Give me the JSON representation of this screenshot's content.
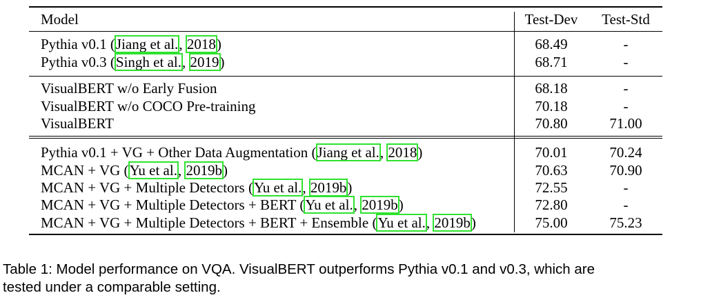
{
  "table": {
    "headers": {
      "model": "Model",
      "dev": "Test-Dev",
      "std": "Test-Std"
    },
    "rows": [
      {
        "model": "Pythia v0.1 (",
        "cite_author": "Jiang et al.",
        "sep": ", ",
        "cite_year": "2018",
        "close": ")",
        "dev": "68.49",
        "std": "-"
      },
      {
        "model": "Pythia v0.3 (",
        "cite_author": "Singh et al.",
        "sep": ", ",
        "cite_year": "2019",
        "close": ")",
        "dev": "68.71",
        "std": "-"
      },
      {
        "model": "VisualBERT w/o Early Fusion",
        "dev": "68.18",
        "std": "-"
      },
      {
        "model": "VisualBERT w/o COCO Pre-training",
        "dev": "70.18",
        "std": "-"
      },
      {
        "model": "VisualBERT",
        "dev": "70.80",
        "std": "71.00"
      },
      {
        "model": "Pythia v0.1 + VG + Other Data Augmentation (",
        "cite_author": "Jiang et al.",
        "sep": ", ",
        "cite_year": "2018",
        "close": ")",
        "dev": "70.01",
        "std": "70.24"
      },
      {
        "model": "MCAN + VG  (",
        "cite_author": "Yu et al.",
        "sep": ", ",
        "cite_year": "2019b",
        "close": ")",
        "dev": "70.63",
        "std": "70.90"
      },
      {
        "model": "MCAN + VG + Multiple Detectors (",
        "cite_author": "Yu et al.",
        "sep": ", ",
        "cite_year": "2019b",
        "close": ")",
        "dev": "72.55",
        "std": "-"
      },
      {
        "model": "MCAN + VG + Multiple Detectors + BERT (",
        "cite_author": "Yu et al.",
        "sep": ", ",
        "cite_year": "2019b",
        "close": ")",
        "dev": "72.80",
        "std": "-"
      },
      {
        "model": "MCAN + VG + Multiple Detectors + BERT + Ensemble (",
        "cite_author": "Yu et al.",
        "sep": ", ",
        "cite_year": "2019b",
        "close": ")",
        "dev": "75.00",
        "std": "75.23"
      }
    ]
  },
  "caption": {
    "line1": "Table 1: Model performance on VQA. VisualBERT outperforms Pythia v0.1 and v0.3, which are",
    "line2": "tested under a comparable setting."
  }
}
